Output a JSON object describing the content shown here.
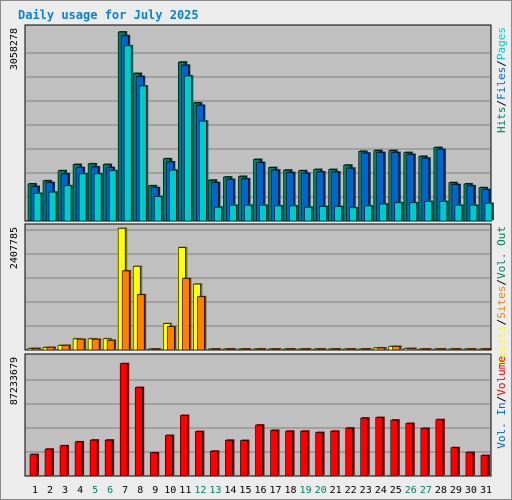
{
  "title": "Daily usage for July 2025",
  "colors": {
    "hits": "#00805c",
    "files": "#0066cc",
    "pages": "#00cccc",
    "visits": "#ffff00",
    "sites": "#ff8000",
    "vol_out": "#00805c",
    "vol_in": "#0066cc",
    "volume": "#ff0000",
    "panel_bg": "#c0c0c0",
    "weekend_day": "#00805c",
    "weekday": "#000000"
  },
  "chart_data": [
    {
      "type": "bar",
      "panel": "top",
      "y_max_label": "3058278",
      "ylim": [
        0,
        3058278
      ],
      "categories": [
        "1",
        "2",
        "3",
        "4",
        "5",
        "6",
        "7",
        "8",
        "9",
        "10",
        "11",
        "12",
        "13",
        "14",
        "15",
        "16",
        "17",
        "18",
        "19",
        "20",
        "21",
        "22",
        "23",
        "24",
        "25",
        "26",
        "27",
        "28",
        "29",
        "30",
        "31"
      ],
      "weekend_days": [
        "5",
        "6",
        "12",
        "13",
        "19",
        "20",
        "26",
        "27"
      ],
      "series": [
        {
          "name": "Hits",
          "color": "#00805c",
          "values": [
            590000,
            640000,
            800000,
            900000,
            910000,
            900000,
            3010000,
            2350000,
            560000,
            990000,
            2530000,
            1880000,
            650000,
            700000,
            710000,
            980000,
            850000,
            810000,
            800000,
            820000,
            820000,
            890000,
            1110000,
            1120000,
            1120000,
            1090000,
            1030000,
            1170000,
            610000,
            590000,
            530000
          ]
        },
        {
          "name": "Files",
          "color": "#0066cc",
          "values": [
            550000,
            610000,
            750000,
            850000,
            860000,
            850000,
            2950000,
            2300000,
            530000,
            940000,
            2480000,
            1840000,
            610000,
            660000,
            670000,
            930000,
            810000,
            770000,
            760000,
            780000,
            780000,
            840000,
            1080000,
            1090000,
            1090000,
            1060000,
            1000000,
            1140000,
            580000,
            560000,
            500000
          ]
        },
        {
          "name": "Pages",
          "color": "#00cccc",
          "values": [
            440000,
            460000,
            560000,
            750000,
            750000,
            800000,
            2790000,
            2150000,
            390000,
            810000,
            2310000,
            1590000,
            220000,
            250000,
            250000,
            250000,
            240000,
            240000,
            220000,
            230000,
            230000,
            210000,
            240000,
            270000,
            290000,
            290000,
            310000,
            310000,
            250000,
            250000,
            280000
          ]
        }
      ]
    },
    {
      "type": "bar",
      "panel": "middle",
      "y_max_label": "2407785",
      "ylim": [
        0,
        2407785
      ],
      "categories": [
        "1",
        "2",
        "3",
        "4",
        "5",
        "6",
        "7",
        "8",
        "9",
        "10",
        "11",
        "12",
        "13",
        "14",
        "15",
        "16",
        "17",
        "18",
        "19",
        "20",
        "21",
        "22",
        "23",
        "24",
        "25",
        "26",
        "27",
        "28",
        "29",
        "30",
        "31"
      ],
      "series": [
        {
          "name": "Visits",
          "color": "#ffff00",
          "values": [
            30000,
            50000,
            90000,
            220000,
            220000,
            220000,
            2400000,
            1650000,
            10000,
            520000,
            2020000,
            1300000,
            5000,
            5000,
            5000,
            5000,
            5000,
            5000,
            5000,
            5000,
            5000,
            5000,
            5000,
            40000,
            70000,
            30000,
            5000,
            5000,
            15000,
            5000,
            5000
          ]
        },
        {
          "name": "Sites",
          "color": "#ff8000",
          "values": [
            30000,
            50000,
            90000,
            210000,
            210000,
            190000,
            1560000,
            1090000,
            10000,
            460000,
            1410000,
            1050000,
            5000,
            5000,
            5000,
            5000,
            5000,
            5000,
            5000,
            5000,
            5000,
            5000,
            5000,
            40000,
            70000,
            30000,
            5000,
            5000,
            15000,
            5000,
            5000
          ]
        }
      ]
    },
    {
      "type": "bar",
      "panel": "bottom",
      "y_max_label": "87233679",
      "ylim": [
        0,
        87233679
      ],
      "categories": [
        "1",
        "2",
        "3",
        "4",
        "5",
        "6",
        "7",
        "8",
        "9",
        "10",
        "11",
        "12",
        "13",
        "14",
        "15",
        "16",
        "17",
        "18",
        "19",
        "20",
        "21",
        "22",
        "23",
        "24",
        "25",
        "26",
        "27",
        "28",
        "29",
        "30",
        "31"
      ],
      "series": [
        {
          "name": "Volume",
          "color": "#ff0000",
          "values": [
            15800000,
            19800000,
            22300000,
            25200000,
            26500000,
            26500000,
            83000000,
            65400000,
            17100000,
            29900000,
            44700000,
            32800000,
            18300000,
            26400000,
            26200000,
            37600000,
            33700000,
            33100000,
            33100000,
            32100000,
            33100000,
            35400000,
            42800000,
            43200000,
            41300000,
            38800000,
            35200000,
            41600000,
            20900000,
            17400000,
            15100000
          ]
        }
      ]
    }
  ],
  "legends": {
    "top": [
      "Hits",
      "/",
      "Files",
      "/",
      "Pages"
    ],
    "middle": [
      "Visits",
      "/",
      "Sites",
      "/",
      "Vol. Out"
    ],
    "bottom": [
      "Vol. In",
      "/",
      "Volume"
    ]
  }
}
